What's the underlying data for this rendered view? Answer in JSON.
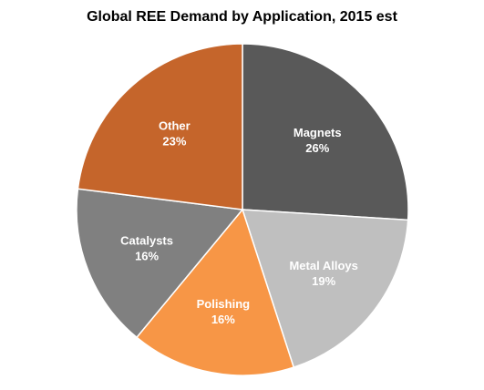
{
  "chart_data": {
    "type": "pie",
    "title": "Global REE Demand by Application, 2015 est",
    "slices": [
      {
        "label": "Magnets",
        "percent_label": "26%",
        "value": 26,
        "color": "#595959",
        "text_color": "#ffffff"
      },
      {
        "label": "Metal Alloys",
        "percent_label": "19%",
        "value": 19,
        "color": "#bfbfbf",
        "text_color": "#ffffff"
      },
      {
        "label": "Polishing",
        "percent_label": "16%",
        "value": 16,
        "color": "#f79646",
        "text_color": "#ffffff"
      },
      {
        "label": "Catalysts",
        "percent_label": "16%",
        "value": 16,
        "color": "#808080",
        "text_color": "#ffffff"
      },
      {
        "label": "Other",
        "percent_label": "23%",
        "value": 23,
        "color": "#c5652b",
        "text_color": "#ffffff"
      }
    ],
    "start_angle": "12 o'clock",
    "direction": "clockwise",
    "legend": "none"
  }
}
